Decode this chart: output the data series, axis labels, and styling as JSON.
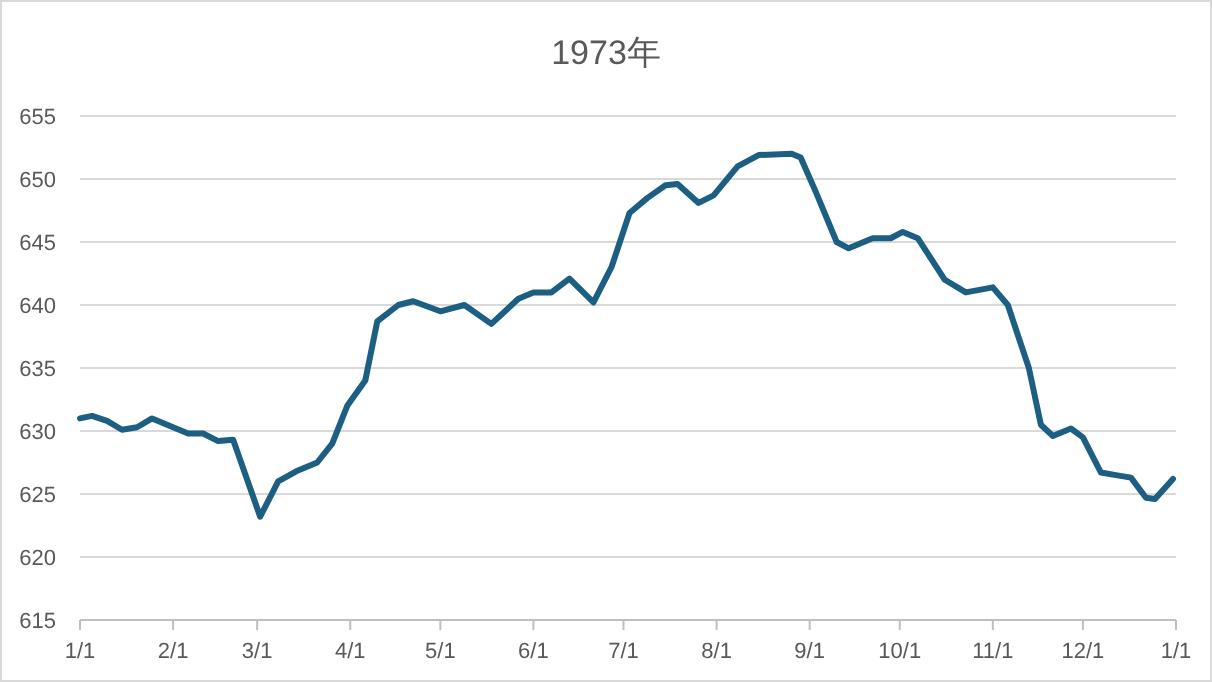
{
  "chart_data": {
    "type": "line",
    "title": "1973年",
    "grid": "y",
    "xlim": [
      "1973-01-01",
      "1974-01-01"
    ],
    "ylim": [
      615,
      655
    ],
    "yticks": [
      615,
      620,
      625,
      630,
      635,
      640,
      645,
      650,
      655
    ],
    "xticks": [
      {
        "value": "1973-01-01",
        "label": "1/1"
      },
      {
        "value": "1973-02-01",
        "label": "2/1"
      },
      {
        "value": "1973-03-01",
        "label": "3/1"
      },
      {
        "value": "1973-04-01",
        "label": "4/1"
      },
      {
        "value": "1973-05-01",
        "label": "5/1"
      },
      {
        "value": "1973-06-01",
        "label": "6/1"
      },
      {
        "value": "1973-07-01",
        "label": "7/1"
      },
      {
        "value": "1973-08-01",
        "label": "8/1"
      },
      {
        "value": "1973-09-01",
        "label": "9/1"
      },
      {
        "value": "1973-10-01",
        "label": "10/1"
      },
      {
        "value": "1973-11-01",
        "label": "11/1"
      },
      {
        "value": "1973-12-01",
        "label": "12/1"
      },
      {
        "value": "1974-01-01",
        "label": "1/1"
      }
    ],
    "series": [
      {
        "color": "#1d5f82",
        "x": [
          "1973-01-01",
          "1973-01-05",
          "1973-01-10",
          "1973-01-15",
          "1973-01-20",
          "1973-01-25",
          "1973-01-30",
          "1973-02-06",
          "1973-02-11",
          "1973-02-16",
          "1973-02-21",
          "1973-03-02",
          "1973-03-08",
          "1973-03-14",
          "1973-03-21",
          "1973-03-26",
          "1973-03-31",
          "1973-04-06",
          "1973-04-10",
          "1973-04-17",
          "1973-04-22",
          "1973-05-01",
          "1973-05-09",
          "1973-05-18",
          "1973-05-27",
          "1973-06-01",
          "1973-06-07",
          "1973-06-13",
          "1973-06-21",
          "1973-06-27",
          "1973-07-03",
          "1973-07-09",
          "1973-07-15",
          "1973-07-19",
          "1973-07-26",
          "1973-07-31",
          "1973-08-08",
          "1973-08-15",
          "1973-08-26",
          "1973-08-29",
          "1973-09-03",
          "1973-09-10",
          "1973-09-14",
          "1973-09-22",
          "1973-09-28",
          "1973-10-02",
          "1973-10-07",
          "1973-10-16",
          "1973-10-23",
          "1973-11-01",
          "1973-11-06",
          "1973-11-13",
          "1973-11-17",
          "1973-11-21",
          "1973-11-27",
          "1973-12-01",
          "1973-12-07",
          "1973-12-12",
          "1973-12-17",
          "1973-12-22",
          "1973-12-25",
          "1973-12-31"
        ],
        "values": [
          631.0,
          631.2,
          630.8,
          630.1,
          630.3,
          631.0,
          630.5,
          629.8,
          629.8,
          629.2,
          629.3,
          623.2,
          626.0,
          626.8,
          627.5,
          629.0,
          632.0,
          634.0,
          638.7,
          640.0,
          640.3,
          639.5,
          640.0,
          638.5,
          640.5,
          641.0,
          641.0,
          642.1,
          640.2,
          643.0,
          647.3,
          648.5,
          649.5,
          649.6,
          648.1,
          648.7,
          651.0,
          651.9,
          652.0,
          651.7,
          649.0,
          645.0,
          644.5,
          645.3,
          645.3,
          645.8,
          645.3,
          642.0,
          641.0,
          641.4,
          640.0,
          635.0,
          630.5,
          629.6,
          630.2,
          629.5,
          626.7,
          626.5,
          626.3,
          624.7,
          624.6,
          626.2
        ]
      }
    ]
  }
}
